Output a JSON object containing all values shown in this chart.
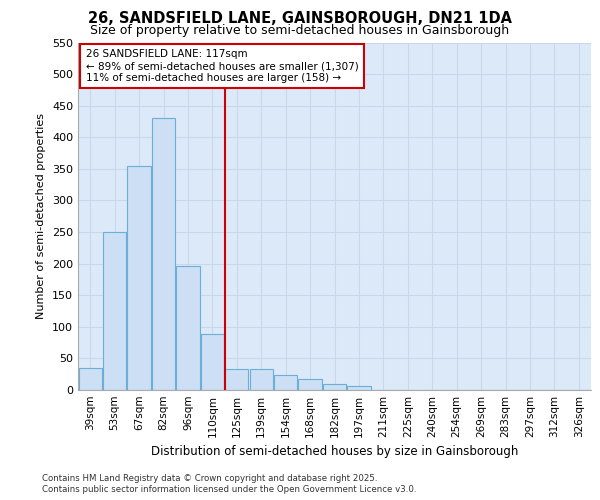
{
  "title1": "26, SANDSFIELD LANE, GAINSBOROUGH, DN21 1DA",
  "title2": "Size of property relative to semi-detached houses in Gainsborough",
  "xlabel": "Distribution of semi-detached houses by size in Gainsborough",
  "ylabel": "Number of semi-detached properties",
  "categories": [
    "39sqm",
    "53sqm",
    "67sqm",
    "82sqm",
    "96sqm",
    "110sqm",
    "125sqm",
    "139sqm",
    "154sqm",
    "168sqm",
    "182sqm",
    "197sqm",
    "211sqm",
    "225sqm",
    "240sqm",
    "254sqm",
    "269sqm",
    "283sqm",
    "297sqm",
    "312sqm",
    "326sqm"
  ],
  "values": [
    35,
    250,
    355,
    430,
    197,
    88,
    33,
    33,
    23,
    17,
    9,
    7,
    0,
    0,
    0,
    0,
    0,
    0,
    0,
    0,
    0
  ],
  "bar_color": "#ccdff5",
  "bar_edge_color": "#6baed6",
  "grid_color": "#c8d8ea",
  "background_color": "#dce9f8",
  "vline_x": 5.5,
  "vline_color": "#cc0000",
  "annotation_title": "26 SANDSFIELD LANE: 117sqm",
  "annotation_line1": "← 89% of semi-detached houses are smaller (1,307)",
  "annotation_line2": "11% of semi-detached houses are larger (158) →",
  "box_color": "#cc0000",
  "ylim": [
    0,
    550
  ],
  "yticks": [
    0,
    50,
    100,
    150,
    200,
    250,
    300,
    350,
    400,
    450,
    500,
    550
  ],
  "footer1": "Contains HM Land Registry data © Crown copyright and database right 2025.",
  "footer2": "Contains public sector information licensed under the Open Government Licence v3.0."
}
